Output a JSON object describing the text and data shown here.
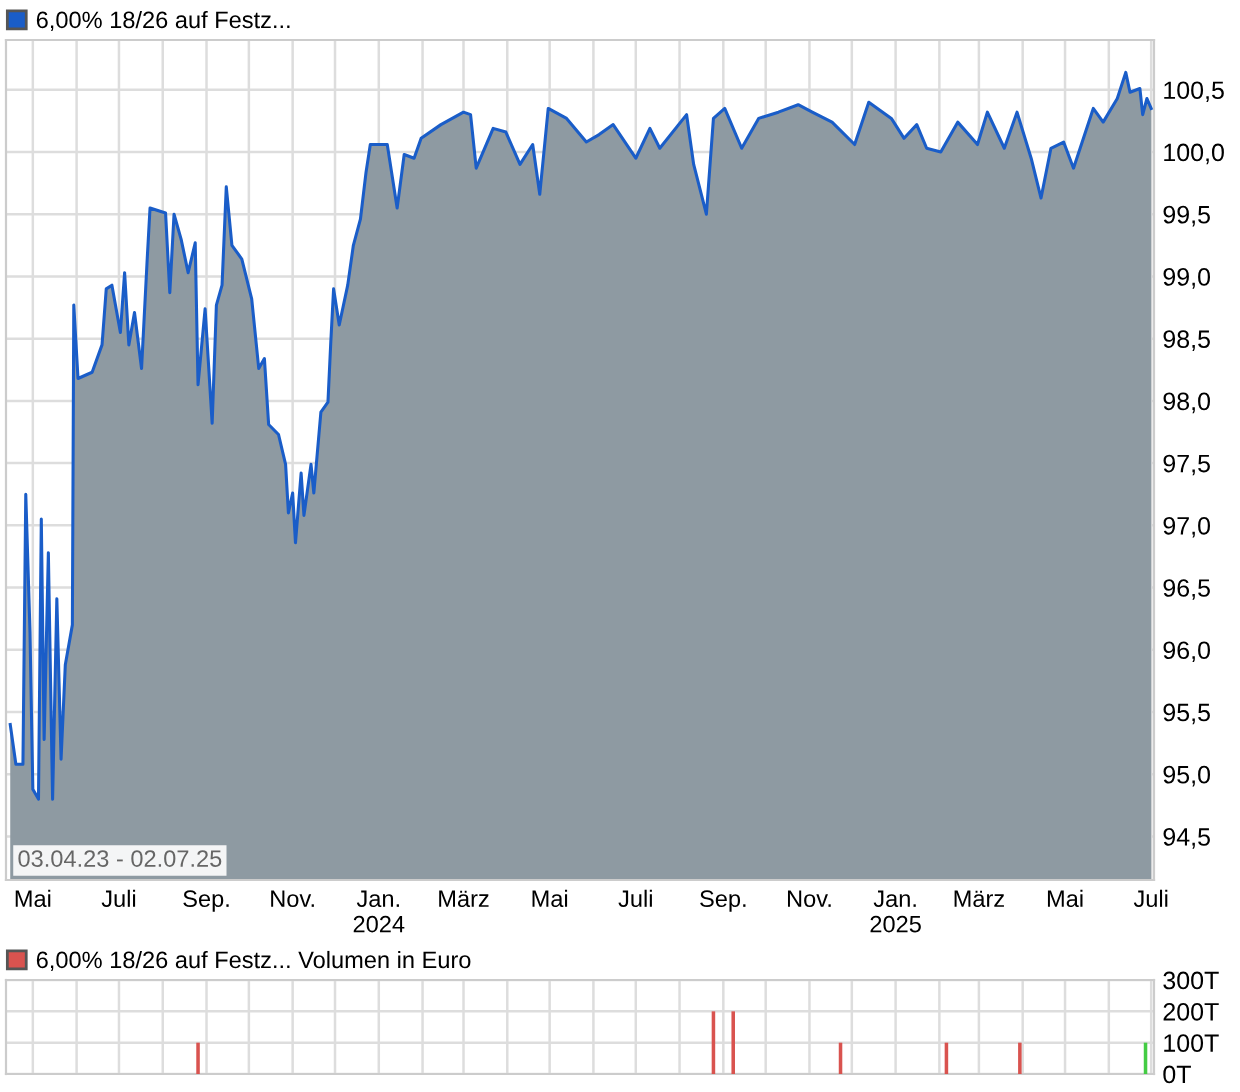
{
  "chart_data": [
    {
      "type": "area",
      "legend": "top left",
      "grid": true,
      "annotations": [
        "03.04.23 - 02.07.25"
      ],
      "xlim": [
        "2023-04-12",
        "2025-07-03"
      ],
      "ylim": [
        94.15,
        100.9
      ],
      "yticks": [
        {
          "value": 94.5,
          "label": "94,5"
        },
        {
          "value": 95.0,
          "label": "95,0"
        },
        {
          "value": 95.5,
          "label": "95,5"
        },
        {
          "value": 96.0,
          "label": "96,0"
        },
        {
          "value": 96.5,
          "label": "96,5"
        },
        {
          "value": 97.0,
          "label": "97,0"
        },
        {
          "value": 97.5,
          "label": "97,5"
        },
        {
          "value": 98.0,
          "label": "98,0"
        },
        {
          "value": 98.5,
          "label": "98,5"
        },
        {
          "value": 99.0,
          "label": "99,0"
        },
        {
          "value": 99.5,
          "label": "99,5"
        },
        {
          "value": 100.0,
          "label": "100,0"
        },
        {
          "value": 100.5,
          "label": "100,5"
        }
      ],
      "xticks": [
        {
          "value": "2023-05-01",
          "label": "Mai"
        },
        {
          "value": "2023-06-01",
          "label": null
        },
        {
          "value": "2023-07-01",
          "label": "Juli"
        },
        {
          "value": "2023-08-01",
          "label": null
        },
        {
          "value": "2023-09-01",
          "label": "Sep."
        },
        {
          "value": "2023-10-01",
          "label": null
        },
        {
          "value": "2023-11-01",
          "label": "Nov."
        },
        {
          "value": "2023-12-01",
          "label": null
        },
        {
          "value": "2024-01-01",
          "label": "Jan.\n2024"
        },
        {
          "value": "2024-02-01",
          "label": null
        },
        {
          "value": "2024-03-01",
          "label": "März"
        },
        {
          "value": "2024-04-01",
          "label": null
        },
        {
          "value": "2024-05-01",
          "label": "Mai"
        },
        {
          "value": "2024-06-01",
          "label": null
        },
        {
          "value": "2024-07-01",
          "label": "Juli"
        },
        {
          "value": "2024-08-01",
          "label": null
        },
        {
          "value": "2024-09-01",
          "label": "Sep."
        },
        {
          "value": "2024-10-01",
          "label": null
        },
        {
          "value": "2024-11-01",
          "label": "Nov."
        },
        {
          "value": "2024-12-01",
          "label": null
        },
        {
          "value": "2025-01-01",
          "label": "Jan.\n2025"
        },
        {
          "value": "2025-02-01",
          "label": null
        },
        {
          "value": "2025-03-01",
          "label": "März"
        },
        {
          "value": "2025-04-01",
          "label": null
        },
        {
          "value": "2025-05-01",
          "label": "Mai"
        },
        {
          "value": "2025-06-01",
          "label": null
        },
        {
          "value": "2025-07-01",
          "label": "Juli"
        }
      ],
      "series": [
        {
          "name": "6,00% 18/26 auf Festz...",
          "color": "#1a5dc8",
          "x": [
            "2023-04-15",
            "2023-04-19",
            "2023-04-24",
            "2023-04-26",
            "2023-04-29",
            "2023-05-01",
            "2023-05-05",
            "2023-05-07",
            "2023-05-09",
            "2023-05-12",
            "2023-05-15",
            "2023-05-18",
            "2023-05-21",
            "2023-05-24",
            "2023-05-29",
            "2023-05-30",
            "2023-06-02",
            "2023-06-12",
            "2023-06-19",
            "2023-06-22",
            "2023-06-26",
            "2023-07-02",
            "2023-07-05",
            "2023-07-08",
            "2023-07-12",
            "2023-07-17",
            "2023-07-21",
            "2023-07-23",
            "2023-08-03",
            "2023-08-06",
            "2023-08-09",
            "2023-08-14",
            "2023-08-19",
            "2023-08-24",
            "2023-08-26",
            "2023-08-31",
            "2023-09-05",
            "2023-09-08",
            "2023-09-12",
            "2023-09-15",
            "2023-09-19",
            "2023-09-26",
            "2023-10-03",
            "2023-10-08",
            "2023-10-12",
            "2023-10-15",
            "2023-10-22",
            "2023-10-27",
            "2023-10-29",
            "2023-11-01",
            "2023-11-03",
            "2023-11-07",
            "2023-11-09",
            "2023-11-14",
            "2023-11-16",
            "2023-11-21",
            "2023-11-26",
            "2023-11-28",
            "2023-11-30",
            "2023-12-04",
            "2023-12-10",
            "2023-12-14",
            "2023-12-19",
            "2023-12-23",
            "2023-12-26",
            "2024-01-07",
            "2024-01-14",
            "2024-01-19",
            "2024-01-26",
            "2024-01-31",
            "2024-02-14",
            "2024-03-01",
            "2024-03-06",
            "2024-03-10",
            "2024-03-22",
            "2024-03-31",
            "2024-04-10",
            "2024-04-19",
            "2024-04-24",
            "2024-04-30",
            "2024-05-13",
            "2024-05-27",
            "2024-06-05",
            "2024-06-15",
            "2024-07-01",
            "2024-07-11",
            "2024-07-18",
            "2024-08-06",
            "2024-08-11",
            "2024-08-20",
            "2024-08-25",
            "2024-09-02",
            "2024-09-14",
            "2024-09-26",
            "2024-10-10",
            "2024-10-24",
            "2024-11-03",
            "2024-11-17",
            "2024-12-03",
            "2024-12-13",
            "2024-12-29",
            "2025-01-07",
            "2025-01-16",
            "2025-01-23",
            "2025-02-02",
            "2025-02-14",
            "2025-02-28",
            "2025-03-07",
            "2025-03-19",
            "2025-03-28",
            "2025-04-07",
            "2025-04-14",
            "2025-04-21",
            "2025-04-30",
            "2025-05-07",
            "2025-05-21",
            "2025-05-28",
            "2025-06-07",
            "2025-06-13",
            "2025-06-16",
            "2025-06-23",
            "2025-06-25",
            "2025-06-28",
            "2025-07-01"
          ],
          "values": [
            95.4,
            95.08,
            95.08,
            97.25,
            96.14,
            94.88,
            94.8,
            97.05,
            95.28,
            96.78,
            94.8,
            96.41,
            95.12,
            95.88,
            96.2,
            98.77,
            98.18,
            98.23,
            98.45,
            98.9,
            98.93,
            98.55,
            99.03,
            98.45,
            98.71,
            98.26,
            99.14,
            99.55,
            99.51,
            98.87,
            99.5,
            99.3,
            99.03,
            99.27,
            98.13,
            98.74,
            97.82,
            98.77,
            98.93,
            99.72,
            99.25,
            99.14,
            98.82,
            98.26,
            98.34,
            97.81,
            97.73,
            97.49,
            97.1,
            97.26,
            96.86,
            97.42,
            97.08,
            97.49,
            97.26,
            97.91,
            97.99,
            98.47,
            98.9,
            98.61,
            98.93,
            99.25,
            99.46,
            99.84,
            100.06,
            100.06,
            99.55,
            99.98,
            99.95,
            100.11,
            100.22,
            100.32,
            100.3,
            99.87,
            100.19,
            100.16,
            99.9,
            100.06,
            99.66,
            100.35,
            100.27,
            100.08,
            100.14,
            100.22,
            99.95,
            100.19,
            100.03,
            100.3,
            99.9,
            99.5,
            100.27,
            100.35,
            100.03,
            100.27,
            100.32,
            100.38,
            100.32,
            100.24,
            100.06,
            100.4,
            100.27,
            100.11,
            100.22,
            100.03,
            100.0,
            100.24,
            100.06,
            100.32,
            100.03,
            100.32,
            99.95,
            99.63,
            100.03,
            100.08,
            99.87,
            100.35,
            100.24,
            100.43,
            100.64,
            100.48,
            100.51,
            100.3,
            100.43,
            100.35
          ]
        }
      ]
    },
    {
      "type": "bar",
      "legend": "top left",
      "grid": true,
      "tick_labels": "y",
      "xlim": [
        "2023-04-12",
        "2025-07-03"
      ],
      "ylim": [
        0,
        300
      ],
      "yticks": [
        {
          "value": 0,
          "label": "0T"
        },
        {
          "value": 100,
          "label": "100T"
        },
        {
          "value": 200,
          "label": "200T"
        },
        {
          "value": 300,
          "label": "300T"
        }
      ],
      "xticks": [
        {
          "value": "2023-05-01",
          "label": null
        },
        {
          "value": "2023-06-01",
          "label": null
        },
        {
          "value": "2023-07-01",
          "label": null
        },
        {
          "value": "2023-08-01",
          "label": null
        },
        {
          "value": "2023-09-01",
          "label": null
        },
        {
          "value": "2023-10-01",
          "label": null
        },
        {
          "value": "2023-11-01",
          "label": null
        },
        {
          "value": "2023-12-01",
          "label": null
        },
        {
          "value": "2024-01-01",
          "label": null
        },
        {
          "value": "2024-02-01",
          "label": null
        },
        {
          "value": "2024-03-01",
          "label": null
        },
        {
          "value": "2024-04-01",
          "label": null
        },
        {
          "value": "2024-05-01",
          "label": null
        },
        {
          "value": "2024-06-01",
          "label": null
        },
        {
          "value": "2024-07-01",
          "label": null
        },
        {
          "value": "2024-08-01",
          "label": null
        },
        {
          "value": "2024-09-01",
          "label": null
        },
        {
          "value": "2024-10-01",
          "label": null
        },
        {
          "value": "2024-11-01",
          "label": null
        },
        {
          "value": "2024-12-01",
          "label": null
        },
        {
          "value": "2025-01-01",
          "label": null
        },
        {
          "value": "2025-02-01",
          "label": null
        },
        {
          "value": "2025-03-01",
          "label": null
        },
        {
          "value": "2025-04-01",
          "label": null
        },
        {
          "value": "2025-05-01",
          "label": null
        },
        {
          "value": "2025-06-01",
          "label": null
        },
        {
          "value": "2025-07-01",
          "label": null
        }
      ],
      "series": [
        {
          "name": "6,00% 18/26 auf Festz... Volumen in Euro",
          "color": "#d9534f",
          "x": [
            "2023-08-26",
            "2024-08-25",
            "2024-09-08",
            "2024-11-23",
            "2025-02-06",
            "2025-03-30",
            "2025-06-27"
          ],
          "values": [
            100,
            200,
            200,
            100,
            100,
            100,
            100
          ],
          "colors": [
            "#d9534f",
            "#d9534f",
            "#d9534f",
            "#d9534f",
            "#d9534f",
            "#d9534f",
            "#44cc44"
          ]
        }
      ]
    }
  ]
}
